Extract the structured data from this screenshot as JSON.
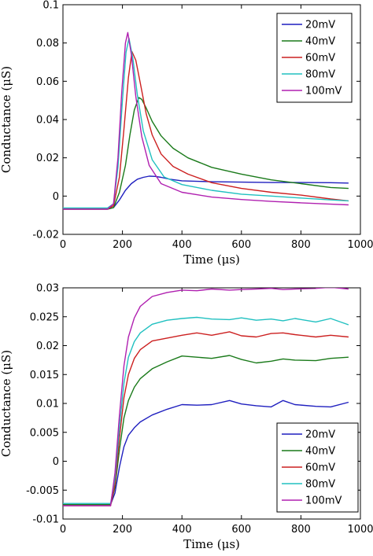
{
  "chart_data": [
    {
      "type": "line",
      "xlabel": "Time (μs)",
      "ylabel": "Conductance (μS)",
      "xlim": [
        0,
        1000
      ],
      "ylim": [
        -0.02,
        0.1
      ],
      "xticks": [
        "0",
        "200",
        "400",
        "600",
        "800",
        "1000"
      ],
      "yticks": [
        "-0.02",
        "0",
        "0.02",
        "0.04",
        "0.06",
        "0.08",
        "0.1"
      ],
      "legend_position": "top-right",
      "grid": false,
      "series": [
        {
          "name": "20mV",
          "color": "#1f1fbf",
          "x": [
            0,
            150,
            170,
            190,
            210,
            230,
            250,
            270,
            290,
            310,
            330,
            360,
            400,
            500,
            600,
            700,
            800,
            900,
            960
          ],
          "y": [
            -0.0068,
            -0.0068,
            -0.006,
            -0.002,
            0.003,
            0.0065,
            0.0088,
            0.0098,
            0.0104,
            0.0103,
            0.0098,
            0.0088,
            0.008,
            0.0075,
            0.0073,
            0.0071,
            0.0071,
            0.007,
            0.0068
          ]
        },
        {
          "name": "40mV",
          "color": "#1a7a1a",
          "x": [
            0,
            150,
            170,
            190,
            210,
            225,
            240,
            255,
            265,
            280,
            300,
            330,
            370,
            420,
            500,
            600,
            700,
            800,
            900,
            960
          ],
          "y": [
            -0.0068,
            -0.0068,
            -0.006,
            0.002,
            0.016,
            0.032,
            0.045,
            0.0515,
            0.0505,
            0.046,
            0.039,
            0.0315,
            0.025,
            0.02,
            0.015,
            0.0115,
            0.0085,
            0.0065,
            0.0045,
            0.004
          ]
        },
        {
          "name": "60mV",
          "color": "#cc2020",
          "x": [
            0,
            150,
            170,
            190,
            205,
            220,
            232,
            245,
            260,
            280,
            300,
            330,
            370,
            420,
            500,
            600,
            700,
            800,
            900,
            960
          ],
          "y": [
            -0.0068,
            -0.0068,
            -0.005,
            0.01,
            0.035,
            0.062,
            0.0755,
            0.071,
            0.059,
            0.043,
            0.032,
            0.022,
            0.0155,
            0.0115,
            0.007,
            0.004,
            0.002,
            0.0005,
            -0.0015,
            -0.0025
          ]
        },
        {
          "name": "80mV",
          "color": "#20c0c0",
          "x": [
            0,
            150,
            170,
            185,
            200,
            212,
            222,
            235,
            250,
            270,
            300,
            340,
            400,
            500,
            600,
            700,
            800,
            900,
            960
          ],
          "y": [
            -0.0062,
            -0.0062,
            -0.004,
            0.015,
            0.05,
            0.075,
            0.0825,
            0.072,
            0.053,
            0.034,
            0.019,
            0.01,
            0.006,
            0.003,
            0.001,
            0.0,
            -0.001,
            -0.002,
            -0.0025
          ]
        },
        {
          "name": "100mV",
          "color": "#b020b0",
          "x": [
            0,
            150,
            170,
            185,
            198,
            210,
            218,
            230,
            245,
            265,
            290,
            330,
            400,
            500,
            600,
            700,
            800,
            900,
            960
          ],
          "y": [
            -0.0068,
            -0.0068,
            -0.004,
            0.02,
            0.055,
            0.08,
            0.0855,
            0.074,
            0.052,
            0.031,
            0.016,
            0.0065,
            0.002,
            -0.0005,
            -0.0018,
            -0.0028,
            -0.0035,
            -0.0042,
            -0.0046
          ]
        }
      ]
    },
    {
      "type": "line",
      "xlabel": "Time (μs)",
      "ylabel": "Conductance (μS)",
      "xlim": [
        0,
        1000
      ],
      "ylim": [
        -0.01,
        0.03
      ],
      "xticks": [
        "0",
        "200",
        "400",
        "600",
        "800",
        "1000"
      ],
      "yticks": [
        "-0.01",
        "-0.005",
        "0",
        "0.005",
        "0.01",
        "0.015",
        "0.02",
        "0.025",
        "0.03"
      ],
      "legend_position": "bottom-right",
      "grid": false,
      "series": [
        {
          "name": "20mV",
          "color": "#1f1fbf",
          "x": [
            0,
            100,
            160,
            175,
            190,
            205,
            220,
            240,
            260,
            300,
            350,
            400,
            450,
            500,
            560,
            600,
            650,
            700,
            740,
            780,
            850,
            900,
            960
          ],
          "y": [
            -0.0075,
            -0.0075,
            -0.0075,
            -0.0055,
            -0.001,
            0.0025,
            0.0045,
            0.0058,
            0.0068,
            0.008,
            0.009,
            0.0098,
            0.0097,
            0.0098,
            0.0105,
            0.0099,
            0.0096,
            0.0094,
            0.0105,
            0.0098,
            0.0095,
            0.0094,
            0.0102
          ]
        },
        {
          "name": "40mV",
          "color": "#1a7a1a",
          "x": [
            0,
            100,
            160,
            175,
            190,
            205,
            220,
            240,
            260,
            300,
            350,
            400,
            450,
            500,
            560,
            600,
            650,
            700,
            740,
            780,
            850,
            900,
            960
          ],
          "y": [
            -0.0075,
            -0.0075,
            -0.0075,
            -0.0045,
            0.002,
            0.0075,
            0.0105,
            0.0128,
            0.0143,
            0.016,
            0.0172,
            0.0182,
            0.018,
            0.0178,
            0.0183,
            0.0176,
            0.017,
            0.0173,
            0.0177,
            0.0175,
            0.0174,
            0.0178,
            0.018
          ]
        },
        {
          "name": "60mV",
          "color": "#cc2020",
          "x": [
            0,
            100,
            160,
            175,
            190,
            205,
            220,
            240,
            260,
            300,
            350,
            400,
            450,
            500,
            560,
            600,
            650,
            700,
            740,
            780,
            850,
            900,
            960
          ],
          "y": [
            -0.0077,
            -0.0077,
            -0.0077,
            -0.004,
            0.004,
            0.011,
            0.015,
            0.0178,
            0.0193,
            0.0208,
            0.0213,
            0.0218,
            0.0222,
            0.0218,
            0.0224,
            0.0217,
            0.0215,
            0.0221,
            0.0222,
            0.0219,
            0.0215,
            0.0218,
            0.0215
          ]
        },
        {
          "name": "80mV",
          "color": "#20c0c0",
          "x": [
            0,
            100,
            160,
            175,
            190,
            205,
            220,
            240,
            260,
            300,
            350,
            400,
            450,
            500,
            560,
            600,
            650,
            700,
            740,
            780,
            850,
            900,
            960
          ],
          "y": [
            -0.0073,
            -0.0073,
            -0.0073,
            -0.003,
            0.006,
            0.0135,
            0.018,
            0.0207,
            0.0222,
            0.0237,
            0.0244,
            0.0247,
            0.0249,
            0.0246,
            0.0245,
            0.0248,
            0.0244,
            0.0246,
            0.0243,
            0.0247,
            0.0241,
            0.0247,
            0.0236
          ]
        },
        {
          "name": "100mV",
          "color": "#b020b0",
          "x": [
            0,
            100,
            160,
            175,
            190,
            205,
            220,
            240,
            260,
            300,
            350,
            400,
            450,
            500,
            560,
            600,
            650,
            700,
            740,
            780,
            850,
            900,
            960
          ],
          "y": [
            -0.0077,
            -0.0077,
            -0.0077,
            -0.002,
            0.008,
            0.0165,
            0.0215,
            0.0248,
            0.0268,
            0.0285,
            0.0292,
            0.0296,
            0.0295,
            0.0298,
            0.0296,
            0.0297,
            0.0298,
            0.0299,
            0.0297,
            0.0298,
            0.0299,
            0.0301,
            0.0298
          ]
        }
      ]
    }
  ]
}
